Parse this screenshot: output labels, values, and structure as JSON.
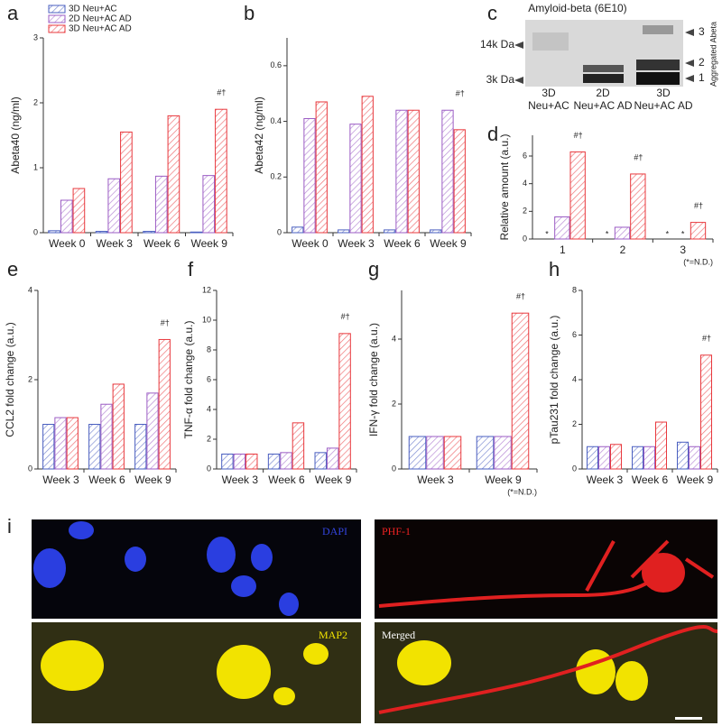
{
  "panel_labels": [
    "a",
    "b",
    "c",
    "d",
    "e",
    "f",
    "g",
    "h",
    "i"
  ],
  "blot": {
    "title": "Amyloid-beta (6E10)",
    "markers": [
      "14k Da",
      "3k Da"
    ],
    "bands": [
      "3",
      "2",
      "1"
    ],
    "side_label": "Aggregated Abeta",
    "lanes": [
      [
        "3D",
        "Neu+AC"
      ],
      [
        "2D",
        "Neu+AC AD"
      ],
      [
        "3D",
        "Neu+AC AD"
      ]
    ]
  },
  "micrographs": {
    "labels": [
      "DAPI",
      "PHF-1",
      "MAP2",
      "Merged"
    ]
  },
  "chart_data": [
    {
      "type": "bar",
      "y_label": "Abeta40 (ng/ml)",
      "categories": [
        "Week 0",
        "Week 3",
        "Week 6",
        "Week 9"
      ],
      "series": [
        {
          "name": "3D Neu+AC",
          "color": "#4a5fc0",
          "values": [
            0.03,
            0.02,
            0.02,
            0.01
          ]
        },
        {
          "name": "2D Neu+AC AD",
          "color": "#9b5cc4",
          "values": [
            0.5,
            0.83,
            0.87,
            0.88
          ]
        },
        {
          "name": "3D Neu+AC AD",
          "color": "#e8383d",
          "values": [
            0.68,
            1.55,
            1.8,
            1.9
          ]
        }
      ],
      "ylim": [
        0,
        3
      ],
      "yticks": [
        0,
        1,
        2,
        3
      ],
      "legend": "upper left",
      "annotations": [
        {
          "text": "#†",
          "category": "Week 9"
        }
      ]
    },
    {
      "type": "bar",
      "y_label": "Abeta42 (ng/ml)",
      "categories": [
        "Week 0",
        "Week 3",
        "Week 6",
        "Week 9"
      ],
      "series": [
        {
          "color": "#4a5fc0",
          "values": [
            0.02,
            0.01,
            0.01,
            0.01
          ]
        },
        {
          "color": "#9b5cc4",
          "values": [
            0.41,
            0.39,
            0.44,
            0.44
          ]
        },
        {
          "color": "#e8383d",
          "values": [
            0.47,
            0.49,
            0.44,
            0.37
          ]
        }
      ],
      "ylim": [
        0,
        0.7
      ],
      "yticks": [
        0,
        0.2,
        0.4,
        0.6
      ],
      "annotations": [
        {
          "text": "#†",
          "category": "Week 9"
        }
      ]
    },
    {
      "type": "bar",
      "y_label": "Relative amount (a.u.)",
      "categories": [
        "1",
        "2",
        "3"
      ],
      "series": [
        {
          "color": "#4a5fc0",
          "values": [
            null,
            null,
            null
          ]
        },
        {
          "color": "#9b5cc4",
          "values": [
            1.6,
            0.85,
            null
          ]
        },
        {
          "color": "#e8383d",
          "values": [
            6.3,
            4.7,
            1.2
          ]
        }
      ],
      "ylim": [
        0,
        7.5
      ],
      "yticks": [
        0,
        2,
        4,
        6
      ],
      "nd_label": "*",
      "note": "(*=N.D.)",
      "annotations": [
        {
          "text": "#†",
          "category": "1"
        },
        {
          "text": "#†",
          "category": "2"
        },
        {
          "text": "#†",
          "category": "3"
        }
      ]
    },
    {
      "type": "bar",
      "y_label": "CCL2 fold change (a.u.)",
      "categories": [
        "Week 3",
        "Week 6",
        "Week 9"
      ],
      "series": [
        {
          "color": "#4a5fc0",
          "values": [
            1.0,
            1.0,
            1.0
          ]
        },
        {
          "color": "#9b5cc4",
          "values": [
            1.15,
            1.45,
            1.7
          ]
        },
        {
          "color": "#e8383d",
          "values": [
            1.15,
            1.9,
            2.9
          ]
        }
      ],
      "ylim": [
        0,
        4
      ],
      "yticks": [
        0,
        2,
        4
      ],
      "annotations": [
        {
          "text": "#†",
          "category": "Week 9"
        }
      ]
    },
    {
      "type": "bar",
      "y_label": "TNF-α fold change (a.u.)",
      "categories": [
        "Week 3",
        "Week 6",
        "Week 9"
      ],
      "series": [
        {
          "color": "#4a5fc0",
          "values": [
            1.0,
            1.0,
            1.1
          ]
        },
        {
          "color": "#9b5cc4",
          "values": [
            1.0,
            1.1,
            1.4
          ]
        },
        {
          "color": "#e8383d",
          "values": [
            1.0,
            3.1,
            9.1
          ]
        }
      ],
      "ylim": [
        0,
        12
      ],
      "yticks": [
        0,
        2,
        4,
        6,
        8,
        10,
        12
      ],
      "annotations": [
        {
          "text": "#†",
          "category": "Week 9"
        }
      ]
    },
    {
      "type": "bar",
      "y_label": "IFN-γ fold change (a.u.)",
      "categories": [
        "Week 3",
        "Week 9"
      ],
      "series": [
        {
          "color": "#4a5fc0",
          "values": [
            1.0,
            1.0
          ]
        },
        {
          "color": "#9b5cc4",
          "values": [
            1.0,
            1.0
          ]
        },
        {
          "color": "#e8383d",
          "values": [
            1.0,
            4.8
          ]
        }
      ],
      "ylim": [
        0,
        5.5
      ],
      "yticks": [
        0,
        2,
        4
      ],
      "note": "(*=N.D.)",
      "annotations": [
        {
          "text": "#†",
          "category": "Week 9"
        }
      ]
    },
    {
      "type": "bar",
      "y_label": "pTau231 fold change (a.u.)",
      "categories": [
        "Week 3",
        "Week 6",
        "Week 9"
      ],
      "series": [
        {
          "color": "#4a5fc0",
          "values": [
            1.0,
            1.0,
            1.2
          ]
        },
        {
          "color": "#9b5cc4",
          "values": [
            1.0,
            1.0,
            1.0
          ]
        },
        {
          "color": "#e8383d",
          "values": [
            1.1,
            2.1,
            5.1
          ]
        }
      ],
      "ylim": [
        0,
        8
      ],
      "yticks": [
        0,
        2,
        4,
        6,
        8
      ],
      "annotations": [
        {
          "text": "#†",
          "category": "Week 9"
        }
      ]
    }
  ]
}
